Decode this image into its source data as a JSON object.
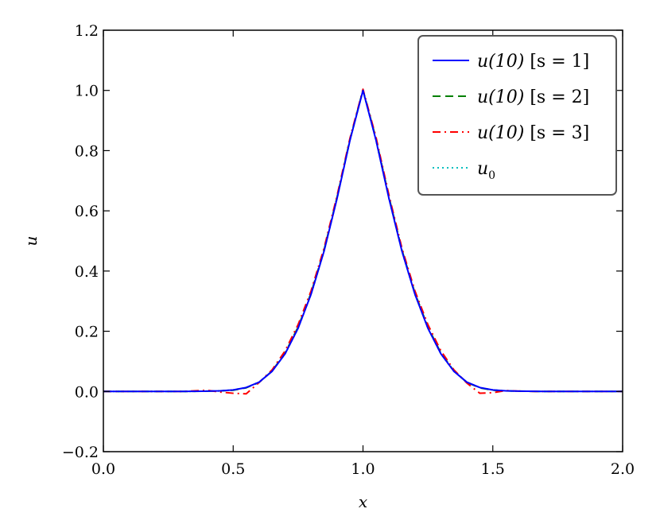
{
  "chart_data": {
    "type": "line",
    "xlabel": "x",
    "ylabel": "u",
    "xlim": [
      0.0,
      2.0
    ],
    "ylim": [
      -0.2,
      1.2
    ],
    "xticks": [
      "0.0",
      "0.5",
      "1.0",
      "1.5",
      "2.0"
    ],
    "yticks": [
      "−0.2",
      "0.0",
      "0.2",
      "0.4",
      "0.6",
      "0.8",
      "1.0",
      "1.2"
    ],
    "grid": false,
    "legend": {
      "placement": "top-right",
      "entries": [
        {
          "math": "u(10)",
          "bracket": "[s = 1]"
        },
        {
          "math": "u(10)",
          "bracket": "[s = 2]"
        },
        {
          "math": "u(10)",
          "bracket": "[s = 3]"
        },
        {
          "math": "u",
          "sub": "0",
          "bracket": ""
        }
      ]
    },
    "series": [
      {
        "color": "#0000ff",
        "dash": "solid",
        "x": [
          0.0,
          0.3,
          0.4,
          0.45,
          0.5,
          0.55,
          0.6,
          0.65,
          0.7,
          0.75,
          0.8,
          0.85,
          0.9,
          0.95,
          1.0,
          1.05,
          1.1,
          1.15,
          1.2,
          1.25,
          1.3,
          1.35,
          1.4,
          1.45,
          1.5,
          1.55,
          1.6,
          1.7,
          2.0
        ],
        "y": [
          0.0,
          0.0,
          0.001,
          0.002,
          0.005,
          0.013,
          0.031,
          0.067,
          0.125,
          0.21,
          0.323,
          0.466,
          0.641,
          0.835,
          1.0,
          0.835,
          0.641,
          0.466,
          0.323,
          0.21,
          0.125,
          0.067,
          0.031,
          0.013,
          0.005,
          0.002,
          0.001,
          0.0,
          0.0
        ]
      },
      {
        "color": "#008000",
        "dash": "dashed",
        "x": [
          0.0,
          0.3,
          0.4,
          0.45,
          0.5,
          0.55,
          0.6,
          0.65,
          0.7,
          0.75,
          0.8,
          0.85,
          0.9,
          0.95,
          1.0,
          1.05,
          1.1,
          1.15,
          1.2,
          1.25,
          1.3,
          1.35,
          1.4,
          1.45,
          1.5,
          1.55,
          1.6,
          1.7,
          2.0
        ],
        "y": [
          0.0,
          0.0,
          0.001,
          0.002,
          0.004,
          0.012,
          0.03,
          0.068,
          0.128,
          0.214,
          0.327,
          0.47,
          0.645,
          0.838,
          1.002,
          0.84,
          0.646,
          0.47,
          0.327,
          0.214,
          0.128,
          0.068,
          0.03,
          0.012,
          0.004,
          0.002,
          0.001,
          0.0,
          0.0
        ]
      },
      {
        "color": "#ff0000",
        "dash": "dashdot",
        "x": [
          0.0,
          0.3,
          0.4,
          0.45,
          0.5,
          0.55,
          0.6,
          0.65,
          0.7,
          0.75,
          0.8,
          0.85,
          0.9,
          0.95,
          1.0,
          1.05,
          1.1,
          1.15,
          1.2,
          1.25,
          1.3,
          1.35,
          1.4,
          1.45,
          1.5,
          1.55,
          1.6,
          1.7,
          2.0
        ],
        "y": [
          0.0,
          0.0,
          0.004,
          -0.002,
          -0.006,
          -0.008,
          0.03,
          0.072,
          0.135,
          0.222,
          0.334,
          0.476,
          0.65,
          0.842,
          1.004,
          0.845,
          0.652,
          0.476,
          0.334,
          0.222,
          0.135,
          0.072,
          0.028,
          -0.006,
          -0.004,
          0.003,
          0.001,
          0.0,
          0.0
        ]
      },
      {
        "color": "#00bfbf",
        "dash": "dotted",
        "x": [
          0.0,
          0.3,
          0.4,
          0.45,
          0.5,
          0.55,
          0.6,
          0.65,
          0.7,
          0.75,
          0.8,
          0.85,
          0.9,
          0.95,
          1.0,
          1.05,
          1.1,
          1.15,
          1.2,
          1.25,
          1.3,
          1.35,
          1.4,
          1.45,
          1.5,
          1.55,
          1.6,
          1.7,
          2.0
        ],
        "y": [
          0.0,
          0.0,
          0.001,
          0.002,
          0.005,
          0.013,
          0.031,
          0.067,
          0.125,
          0.21,
          0.323,
          0.466,
          0.641,
          0.835,
          1.0,
          0.835,
          0.641,
          0.466,
          0.323,
          0.21,
          0.125,
          0.067,
          0.031,
          0.013,
          0.005,
          0.002,
          0.001,
          0.0,
          0.0
        ]
      }
    ]
  }
}
